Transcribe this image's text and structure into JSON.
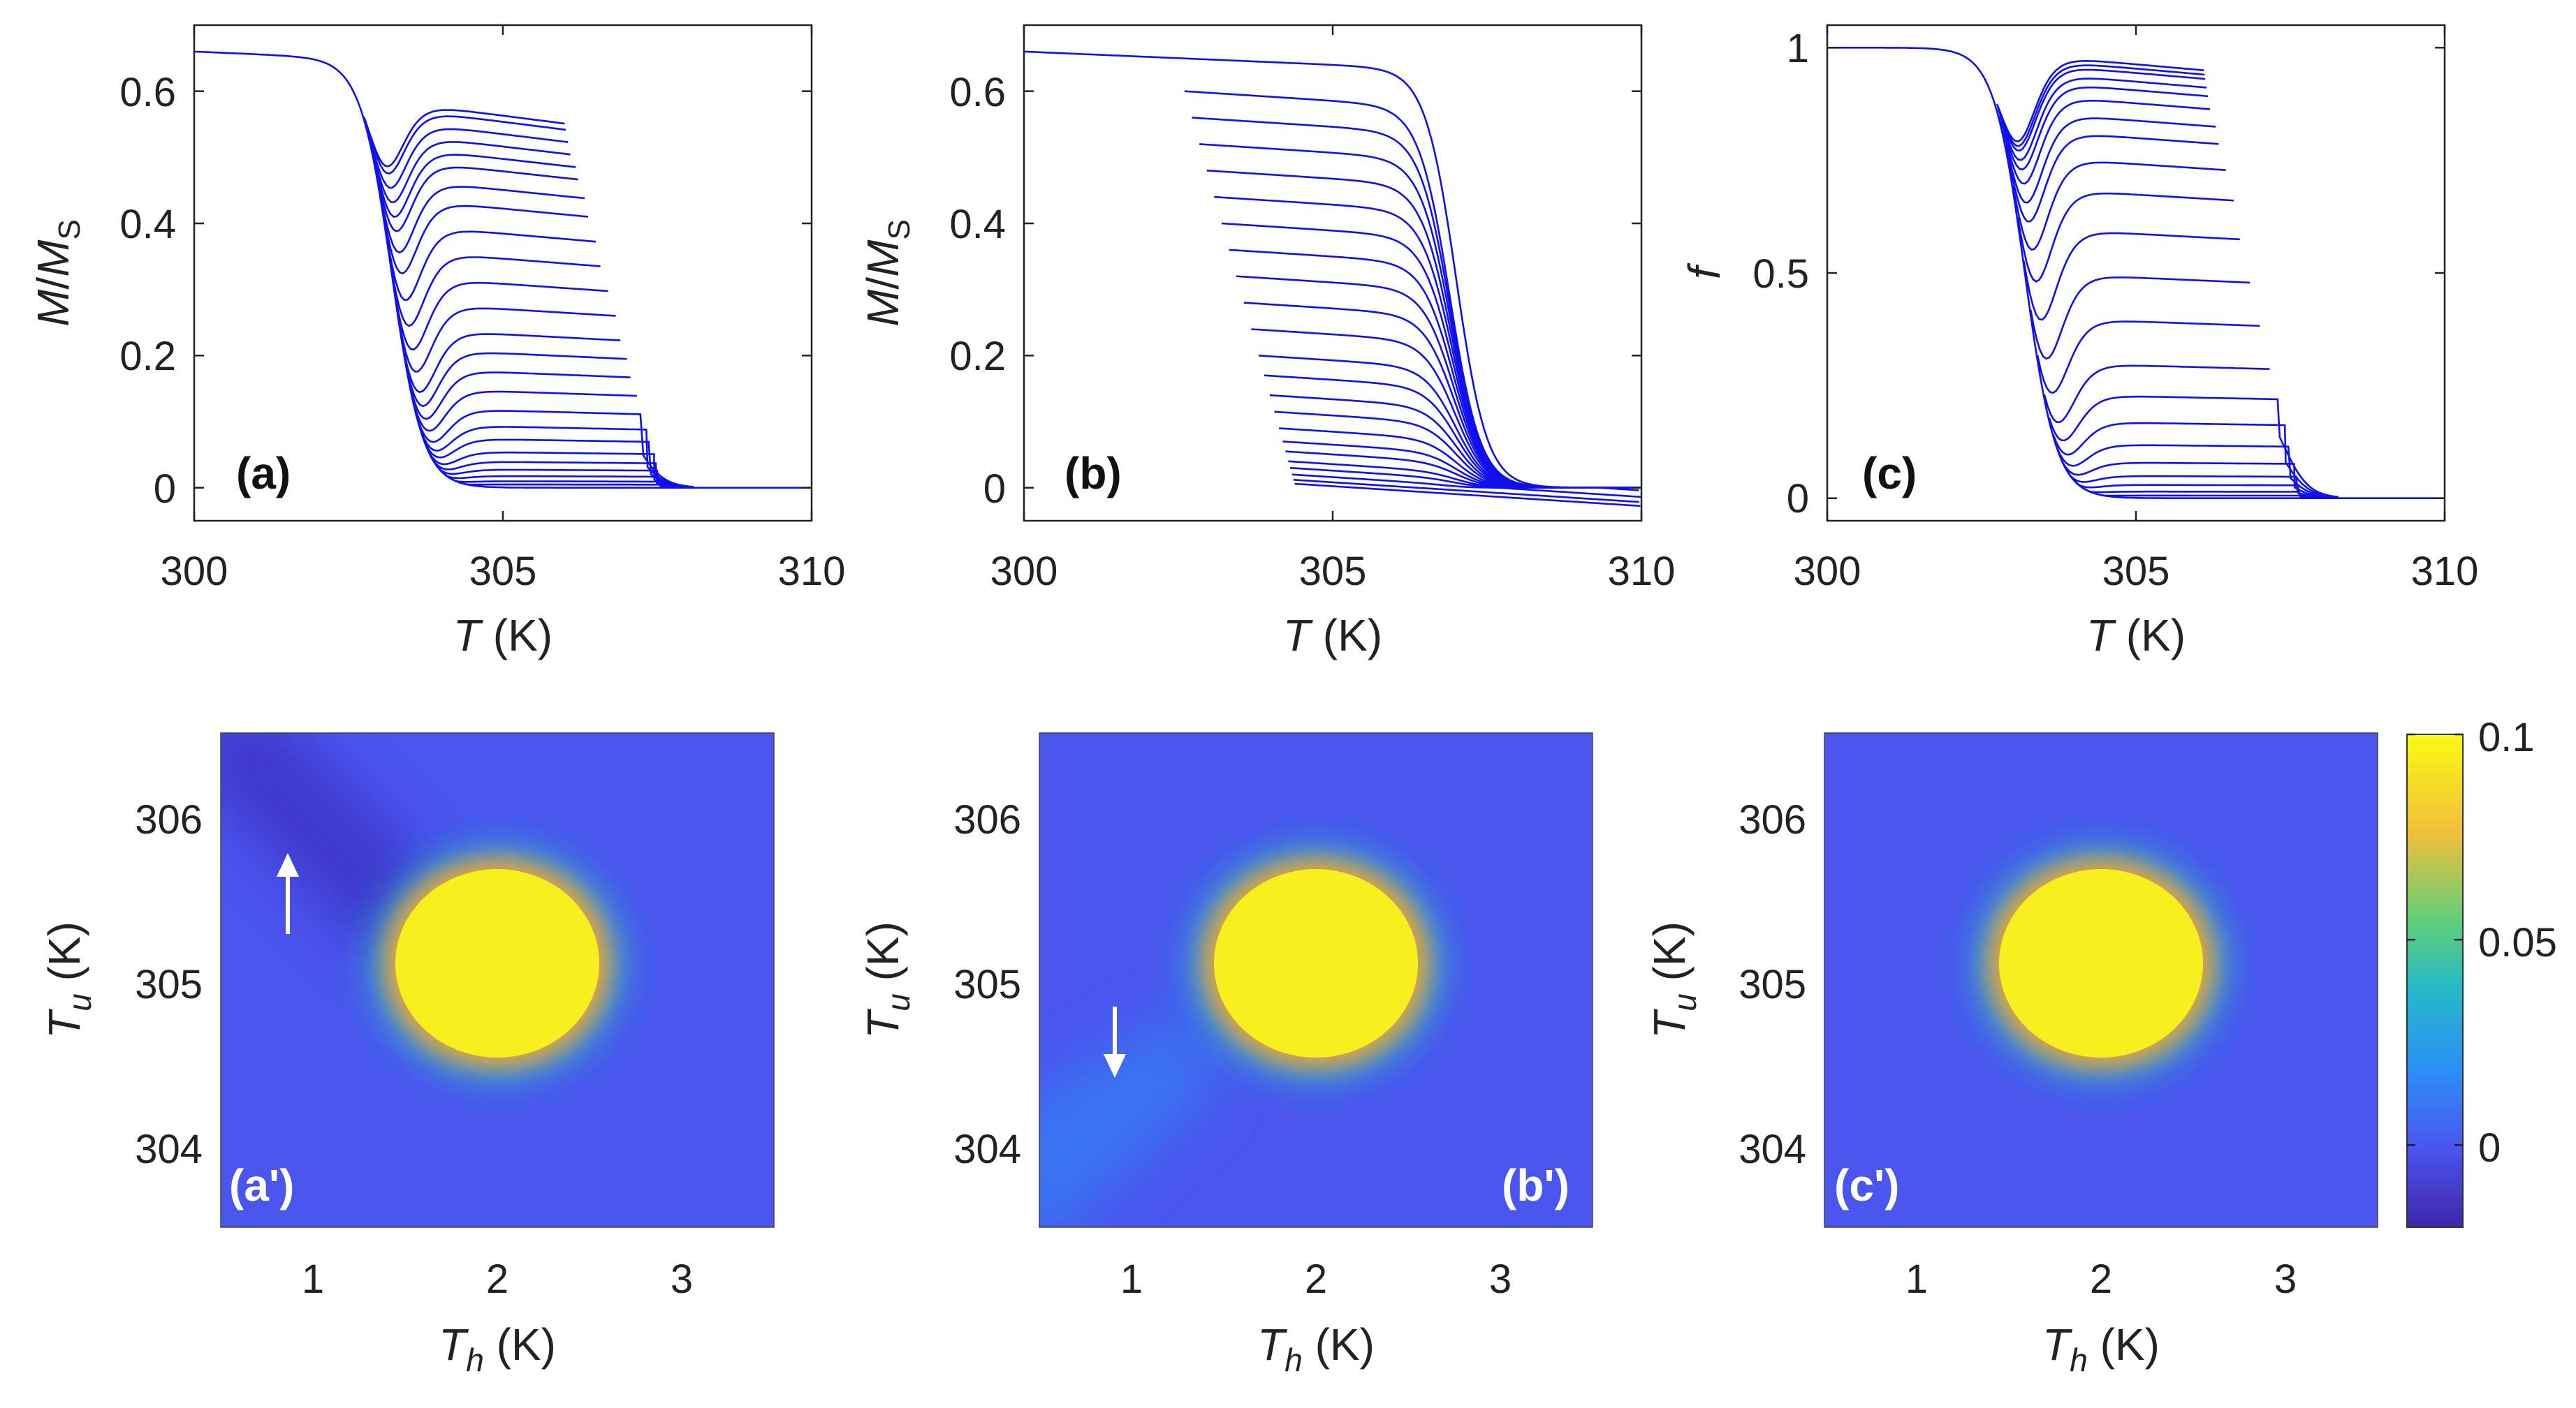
{
  "colors": {
    "curve": "#1010ee",
    "background_map": "#4a55ee",
    "peak": "#f7f01e",
    "colorbar_stops": [
      "#3e26a8",
      "#4a55ee",
      "#2b8ff5",
      "#25b8c8",
      "#5fcf7a",
      "#f0bf3a",
      "#f9fa14"
    ]
  },
  "chart_data": [
    {
      "id": "a",
      "type": "line",
      "panel_label": "(a)",
      "xlabel_var": "T",
      "xlabel_unit": " (K)",
      "ylabel_var": "M",
      "ylabel_mid": "/",
      "ylabel_var2": "M",
      "ylabel_sub": "S",
      "xlim": [
        300,
        310
      ],
      "ylim": [
        -0.05,
        0.7
      ],
      "xticks": [
        "300",
        "305",
        "310"
      ],
      "yticks": [
        "0",
        "0.2",
        "0.4",
        "0.6"
      ],
      "family": {
        "kind": "reversal",
        "transition_center_K": 303.2,
        "upper_transition_center_K": 307.2,
        "reversal_end_T_range_K": [
          306.0,
          307.6
        ],
        "plateau_levels": [
          0.59,
          0.58,
          0.56,
          0.54,
          0.52,
          0.5,
          0.47,
          0.44,
          0.4,
          0.36,
          0.32,
          0.28,
          0.24,
          0.21,
          0.18,
          0.15,
          0.12,
          0.095,
          0.075,
          0.055,
          0.04,
          0.028,
          0.018,
          0.01,
          0.005
        ]
      }
    },
    {
      "id": "b",
      "type": "line",
      "panel_label": "(b)",
      "xlabel_var": "T",
      "xlabel_unit": " (K)",
      "ylabel_var": "M",
      "ylabel_mid": "/",
      "ylabel_var2": "M",
      "ylabel_sub": "S",
      "xlim": [
        300,
        310
      ],
      "ylim": [
        -0.05,
        0.7
      ],
      "xticks": [
        "300",
        "305",
        "310"
      ],
      "yticks": [
        "0",
        "0.2",
        "0.4",
        "0.6"
      ],
      "family": {
        "kind": "reversal-downward",
        "transition_center_K": 307.0,
        "reversal_start_T_range_K": [
          302.6,
          304.4
        ],
        "plateau_levels": [
          0.6,
          0.56,
          0.52,
          0.48,
          0.44,
          0.4,
          0.36,
          0.32,
          0.28,
          0.24,
          0.2,
          0.17,
          0.14,
          0.115,
          0.09,
          0.07,
          0.055,
          0.04,
          0.03,
          0.02,
          0.012,
          0.006
        ]
      }
    },
    {
      "id": "c",
      "type": "line",
      "panel_label": "(c)",
      "xlabel_var": "T",
      "xlabel_unit": " (K)",
      "ylabel_var": "f",
      "xlim": [
        300,
        310
      ],
      "ylim": [
        -0.05,
        1.05
      ],
      "xticks": [
        "300",
        "305",
        "310"
      ],
      "yticks": [
        "0",
        "0.5",
        "1"
      ],
      "family": {
        "kind": "reversal",
        "transition_center_K": 303.2,
        "upper_transition_center_K": 307.4,
        "reversal_end_T_range_K": [
          306.1,
          307.7
        ],
        "plateau_levels": [
          0.99,
          0.98,
          0.97,
          0.95,
          0.93,
          0.9,
          0.86,
          0.82,
          0.76,
          0.69,
          0.6,
          0.5,
          0.4,
          0.3,
          0.23,
          0.17,
          0.12,
          0.08,
          0.05,
          0.03,
          0.015,
          0.006
        ]
      }
    },
    {
      "id": "a-prime",
      "type": "heatmap",
      "panel_label": "(a')",
      "xlabel_var": "T",
      "xlabel_sub": "h",
      "xlabel_unit": " (K)",
      "ylabel_var": "T",
      "ylabel_sub": "u",
      "ylabel_unit": " (K)",
      "xlim": [
        0.5,
        3.5
      ],
      "ylim": [
        303.5,
        306.5
      ],
      "xticks": [
        "1",
        "2",
        "3"
      ],
      "yticks": [
        "304",
        "305",
        "306"
      ],
      "peak_center": [
        2.0,
        305.1
      ],
      "peak_radius": [
        0.62,
        0.55
      ],
      "ridge": "upper-left-dark",
      "arrow": "up",
      "arrow_at": [
        0.85,
        305.8
      ]
    },
    {
      "id": "b-prime",
      "type": "heatmap",
      "panel_label": "(b')",
      "xlabel_var": "T",
      "xlabel_sub": "h",
      "xlabel_unit": " (K)",
      "ylabel_var": "T",
      "ylabel_sub": "u",
      "ylabel_unit": " (K)",
      "xlim": [
        0.5,
        3.5
      ],
      "ylim": [
        303.5,
        306.5
      ],
      "xticks": [
        "1",
        "2",
        "3"
      ],
      "yticks": [
        "304",
        "305",
        "306"
      ],
      "peak_center": [
        2.0,
        305.1
      ],
      "peak_radius": [
        0.62,
        0.55
      ],
      "ridge": "lower-left-light",
      "arrow": "down",
      "arrow_at": [
        0.9,
        304.7
      ]
    },
    {
      "id": "c-prime",
      "type": "heatmap",
      "panel_label": "(c')",
      "xlabel_var": "T",
      "xlabel_sub": "h",
      "xlabel_unit": " (K)",
      "ylabel_var": "T",
      "ylabel_sub": "u",
      "ylabel_unit": " (K)",
      "xlim": [
        0.5,
        3.5
      ],
      "ylim": [
        303.5,
        306.5
      ],
      "xticks": [
        "1",
        "2",
        "3"
      ],
      "yticks": [
        "304",
        "305",
        "306"
      ],
      "peak_center": [
        2.0,
        305.1
      ],
      "peak_radius": [
        0.62,
        0.55
      ],
      "ridge": "none"
    }
  ],
  "colorbar": {
    "range": [
      -0.02,
      0.1
    ],
    "ticks": [
      "0",
      "0.05",
      "0.1"
    ],
    "tick_values": [
      0,
      0.05,
      0.1
    ]
  }
}
